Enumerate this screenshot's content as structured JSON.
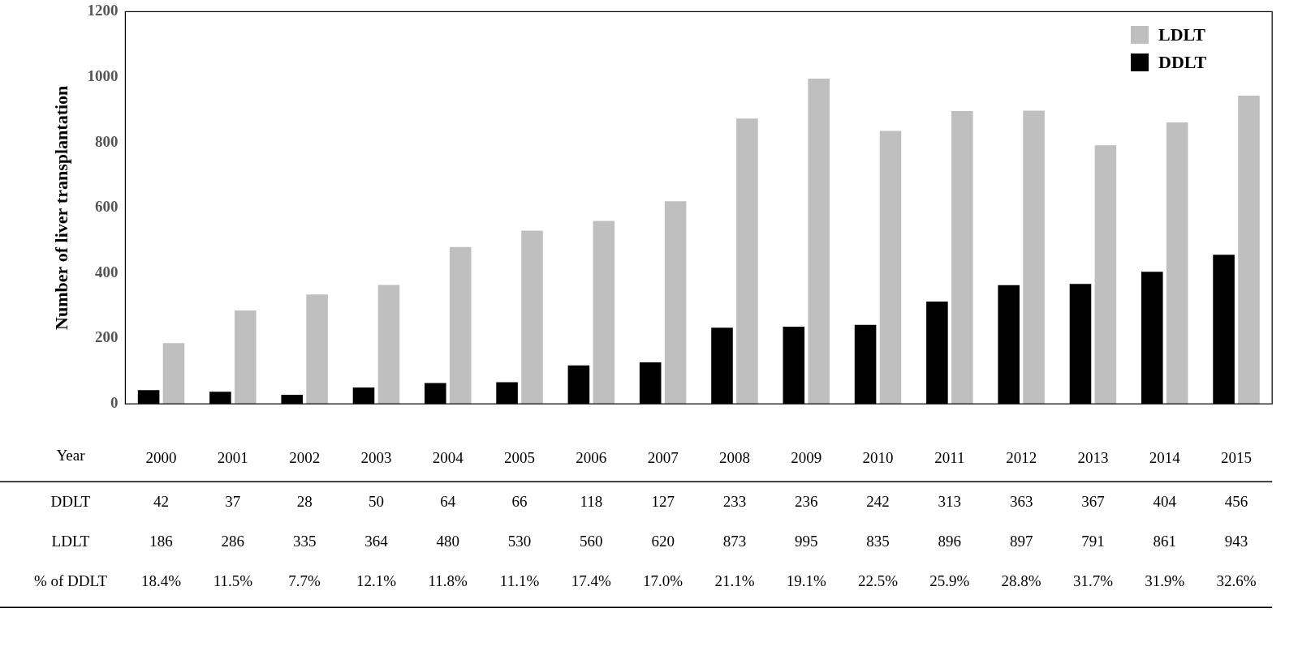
{
  "chart_data": {
    "type": "bar",
    "ylabel": "Number of liver transplantation",
    "xlabel": "Year",
    "categories": [
      "2000",
      "2001",
      "2002",
      "2003",
      "2004",
      "2005",
      "2006",
      "2007",
      "2008",
      "2009",
      "2010",
      "2011",
      "2012",
      "2013",
      "2014",
      "2015"
    ],
    "series": [
      {
        "name": "DDLT",
        "color": "#000000",
        "values": [
          42,
          37,
          28,
          50,
          64,
          66,
          118,
          127,
          233,
          236,
          242,
          313,
          363,
          367,
          404,
          456
        ]
      },
      {
        "name": "LDLT",
        "color": "#bfbfbf",
        "values": [
          186,
          286,
          335,
          364,
          480,
          530,
          560,
          620,
          873,
          995,
          835,
          896,
          897,
          791,
          861,
          943
        ]
      }
    ],
    "table_rows": [
      {
        "label": "% of DDLT",
        "values": [
          18.4,
          11.5,
          7.7,
          12.1,
          11.8,
          11.1,
          17.4,
          17.0,
          21.1,
          19.1,
          22.5,
          25.9,
          28.8,
          31.7,
          31.9,
          32.6
        ],
        "value_labels": [
          "18.4%",
          "11.5%",
          "7.7%",
          "12.1%",
          "11.8%",
          "11.1%",
          "17.4%",
          "17.0%",
          "21.1%",
          "19.1%",
          "22.5%",
          "25.9%",
          "28.8%",
          "31.7%",
          "31.9%",
          "32.6%"
        ]
      }
    ],
    "ylim": [
      0,
      1200
    ],
    "yticks": [
      0,
      200,
      400,
      600,
      800,
      1000,
      1200
    ],
    "grid": false,
    "legend": "upper right",
    "data_labels": false
  }
}
